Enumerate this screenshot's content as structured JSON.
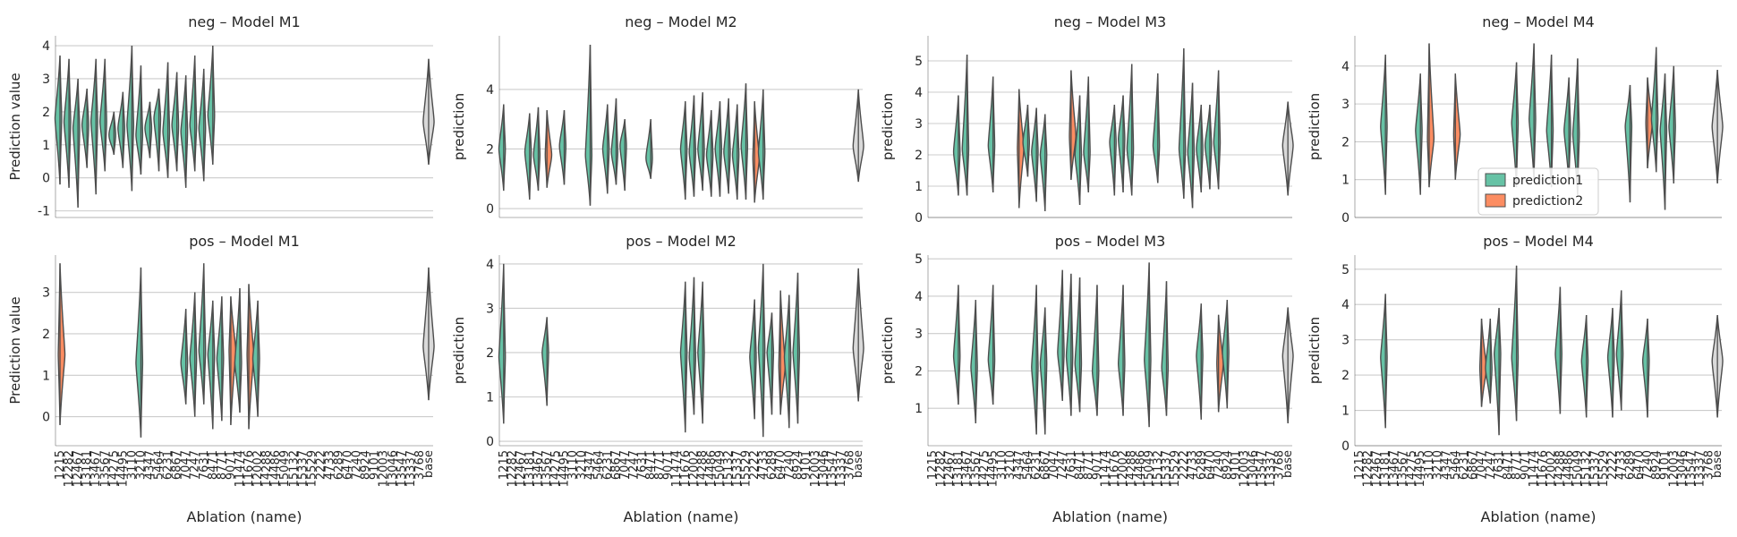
{
  "figure": {
    "xlabel": "Ablation (name)",
    "categories": [
      "1215",
      "12282",
      "12467",
      "13181",
      "13467",
      "13567",
      "14275",
      "14495",
      "3110",
      "3210",
      "4347",
      "5464",
      "6231",
      "6867",
      "7047",
      "7247",
      "7631",
      "8471",
      "8771",
      "9071",
      "11474",
      "11676",
      "12002",
      "14288",
      "14486",
      "15049",
      "15132",
      "15337",
      "15529",
      "2222",
      "4733",
      "6289",
      "6470",
      "7240",
      "8924",
      "9101",
      "12003",
      "13046",
      "13547",
      "13337",
      "3768",
      "base"
    ],
    "colors": {
      "prediction1": "#66c2a5",
      "prediction2": "#fc8d62",
      "base": "#d9d9d9"
    },
    "legend": {
      "entries": [
        "prediction1",
        "prediction2"
      ],
      "placement": "right"
    }
  },
  "chart_data": [
    {
      "type": "violin",
      "title": "neg – Model M1",
      "ylabel": "Prediction value",
      "ylim": [
        -1.2,
        4.3
      ],
      "yticks": [
        -1,
        0,
        1,
        2,
        3,
        4
      ],
      "series": [
        {
          "name": "prediction1"
        },
        {
          "name": "prediction2"
        }
      ],
      "violins": [
        [
          0,
          1.8,
          -0.2,
          3.7,
          1
        ],
        [
          1,
          1.7,
          -0.3,
          3.6,
          1
        ],
        [
          2,
          1.5,
          -0.9,
          3.0,
          1
        ],
        [
          3,
          1.6,
          0.3,
          2.7,
          1
        ],
        [
          4,
          1.7,
          -0.5,
          3.6,
          1
        ],
        [
          5,
          1.7,
          0.2,
          3.6,
          1
        ],
        [
          6,
          1.3,
          0.7,
          2.0,
          1
        ],
        [
          7,
          1.5,
          0.3,
          2.6,
          1
        ],
        [
          8,
          1.6,
          -0.4,
          4.0,
          1
        ],
        [
          9,
          1.3,
          0.1,
          3.4,
          1
        ],
        [
          10,
          1.5,
          0.6,
          2.3,
          1
        ],
        [
          11,
          1.8,
          0.2,
          2.7,
          1
        ],
        [
          12,
          1.4,
          0.0,
          3.5,
          1
        ],
        [
          13,
          1.6,
          0.2,
          3.2,
          1
        ],
        [
          14,
          1.4,
          -0.3,
          3.1,
          1
        ],
        [
          15,
          1.6,
          0.2,
          3.7,
          1
        ],
        [
          16,
          1.5,
          -0.1,
          3.3,
          1
        ],
        [
          17,
          1.9,
          0.4,
          4.0,
          1
        ],
        [
          41,
          1.7,
          0.4,
          3.6,
          3
        ]
      ]
    },
    {
      "type": "violin",
      "title": "neg – Model M2",
      "ylabel": "prediction",
      "ylim": [
        -0.3,
        5.8
      ],
      "yticks": [
        0,
        2,
        4
      ],
      "series": [
        {
          "name": "prediction1"
        },
        {
          "name": "prediction2"
        }
      ],
      "violins": [
        [
          0,
          2.0,
          0.6,
          3.5,
          1
        ],
        [
          3,
          1.9,
          0.3,
          3.2,
          1
        ],
        [
          4,
          1.8,
          0.6,
          3.4,
          1
        ],
        [
          5,
          1.8,
          0.7,
          3.3,
          2
        ],
        [
          7,
          2.1,
          0.8,
          3.3,
          1
        ],
        [
          10,
          1.8,
          0.1,
          5.5,
          1
        ],
        [
          12,
          2.0,
          0.5,
          3.5,
          1
        ],
        [
          13,
          1.9,
          0.8,
          3.7,
          1
        ],
        [
          14,
          2.1,
          0.6,
          3.0,
          1
        ],
        [
          17,
          1.7,
          1.0,
          3.0,
          1
        ],
        [
          21,
          2.0,
          0.3,
          3.6,
          1
        ],
        [
          22,
          1.9,
          0.4,
          3.8,
          1
        ],
        [
          23,
          2.0,
          0.6,
          3.9,
          1
        ],
        [
          24,
          1.8,
          0.4,
          3.3,
          1
        ],
        [
          25,
          2.0,
          0.4,
          3.6,
          1
        ],
        [
          26,
          1.9,
          0.5,
          3.7,
          1
        ],
        [
          27,
          1.8,
          0.3,
          3.5,
          1
        ],
        [
          28,
          2.1,
          0.3,
          4.2,
          1
        ],
        [
          29,
          1.7,
          0.2,
          3.6,
          2
        ],
        [
          30,
          1.9,
          0.3,
          4.0,
          1
        ],
        [
          41,
          2.1,
          0.9,
          4.0,
          3
        ]
      ]
    },
    {
      "type": "violin",
      "title": "neg – Model M3",
      "ylabel": "prediction",
      "ylim": [
        0,
        5.8
      ],
      "yticks": [
        0,
        1,
        2,
        3,
        4,
        5
      ],
      "series": [
        {
          "name": "prediction1"
        },
        {
          "name": "prediction2"
        }
      ],
      "violins": [
        [
          3,
          2.1,
          0.7,
          3.9,
          1
        ],
        [
          4,
          2.2,
          0.7,
          5.2,
          1
        ],
        [
          7,
          2.3,
          0.8,
          4.5,
          1
        ],
        [
          10,
          2.2,
          0.3,
          4.1,
          2
        ],
        [
          11,
          2.4,
          1.3,
          3.6,
          1
        ],
        [
          12,
          2.1,
          0.5,
          3.5,
          1
        ],
        [
          13,
          2.0,
          0.2,
          3.3,
          1
        ],
        [
          16,
          2.6,
          1.2,
          4.7,
          2
        ],
        [
          17,
          2.0,
          0.4,
          3.9,
          1
        ],
        [
          18,
          2.1,
          0.8,
          4.5,
          1
        ],
        [
          21,
          2.4,
          0.7,
          3.6,
          1
        ],
        [
          22,
          2.5,
          0.8,
          3.9,
          1
        ],
        [
          23,
          2.2,
          0.7,
          4.9,
          1
        ],
        [
          26,
          2.3,
          1.1,
          4.6,
          1
        ],
        [
          29,
          2.2,
          0.6,
          5.4,
          1
        ],
        [
          30,
          2.1,
          0.3,
          4.3,
          1
        ],
        [
          31,
          2.2,
          0.8,
          3.6,
          1
        ],
        [
          32,
          2.3,
          0.9,
          3.6,
          1
        ],
        [
          33,
          2.4,
          0.9,
          4.7,
          1
        ],
        [
          41,
          2.3,
          0.7,
          3.7,
          3
        ]
      ]
    },
    {
      "type": "violin",
      "title": "neg – Model M4",
      "ylabel": "prediction",
      "ylim": [
        0,
        4.8
      ],
      "yticks": [
        0,
        1,
        2,
        3,
        4
      ],
      "series": [
        {
          "name": "prediction1"
        },
        {
          "name": "prediction2"
        }
      ],
      "violins": [
        [
          3,
          2.4,
          0.6,
          4.3,
          1
        ],
        [
          7,
          2.3,
          0.6,
          3.8,
          1
        ],
        [
          8,
          2.1,
          0.8,
          4.6,
          2
        ],
        [
          11,
          2.2,
          1.0,
          3.8,
          2
        ],
        [
          18,
          2.5,
          0.8,
          4.1,
          1
        ],
        [
          20,
          2.6,
          1.0,
          4.6,
          1
        ],
        [
          22,
          2.3,
          0.8,
          4.3,
          1
        ],
        [
          24,
          2.3,
          0.9,
          3.7,
          1
        ],
        [
          25,
          2.2,
          0.6,
          4.2,
          1
        ],
        [
          31,
          2.4,
          0.4,
          3.5,
          1
        ],
        [
          33,
          2.5,
          1.3,
          3.7,
          2
        ],
        [
          34,
          2.6,
          1.2,
          4.5,
          1
        ],
        [
          35,
          2.3,
          0.2,
          3.8,
          1
        ],
        [
          36,
          2.4,
          0.9,
          4.0,
          1
        ],
        [
          41,
          2.4,
          0.9,
          3.9,
          3
        ]
      ]
    },
    {
      "type": "violin",
      "title": "pos – Model M1",
      "ylabel": "Prediction value",
      "ylim": [
        -0.7,
        3.9
      ],
      "yticks": [
        0,
        1,
        2,
        3
      ],
      "series": [
        {
          "name": "prediction1"
        },
        {
          "name": "prediction2"
        }
      ],
      "violins": [
        [
          0,
          1.5,
          -0.2,
          3.7,
          2
        ],
        [
          9,
          1.3,
          -0.5,
          3.6,
          1
        ],
        [
          14,
          1.3,
          0.3,
          2.6,
          1
        ],
        [
          15,
          1.4,
          0.0,
          3.0,
          1
        ],
        [
          16,
          1.6,
          0.3,
          3.7,
          1
        ],
        [
          17,
          1.5,
          -0.3,
          2.8,
          1
        ],
        [
          18,
          1.4,
          -0.1,
          2.9,
          1
        ],
        [
          19,
          1.6,
          -0.2,
          2.9,
          2
        ],
        [
          20,
          1.3,
          0.1,
          3.1,
          1
        ],
        [
          21,
          1.5,
          -0.3,
          3.2,
          2
        ],
        [
          22,
          1.4,
          0.0,
          2.8,
          1
        ],
        [
          41,
          1.7,
          0.4,
          3.6,
          3
        ]
      ]
    },
    {
      "type": "violin",
      "title": "pos – Model M2",
      "ylabel": "prediction",
      "ylim": [
        -0.1,
        4.2
      ],
      "yticks": [
        0,
        1,
        2,
        3,
        4
      ],
      "series": [
        {
          "name": "prediction1"
        },
        {
          "name": "prediction2"
        }
      ],
      "violins": [
        [
          0,
          1.9,
          0.4,
          4.0,
          1
        ],
        [
          5,
          2.0,
          0.8,
          2.8,
          1
        ],
        [
          21,
          2.0,
          0.2,
          3.6,
          1
        ],
        [
          22,
          1.9,
          0.6,
          3.7,
          1
        ],
        [
          23,
          2.0,
          0.4,
          3.6,
          1
        ],
        [
          29,
          1.9,
          0.5,
          3.2,
          1
        ],
        [
          30,
          2.1,
          0.1,
          4.0,
          1
        ],
        [
          31,
          2.0,
          0.6,
          2.9,
          1
        ],
        [
          32,
          1.7,
          0.6,
          3.4,
          2
        ],
        [
          33,
          1.9,
          0.3,
          3.3,
          1
        ],
        [
          34,
          2.0,
          0.4,
          3.8,
          1
        ],
        [
          41,
          2.1,
          0.9,
          3.9,
          3
        ]
      ]
    },
    {
      "type": "violin",
      "title": "pos – Model M3",
      "ylabel": "prediction",
      "ylim": [
        0,
        5.1
      ],
      "yticks": [
        1,
        2,
        3,
        4,
        5
      ],
      "series": [
        {
          "name": "prediction1"
        },
        {
          "name": "prediction2"
        }
      ],
      "violins": [
        [
          3,
          2.4,
          1.1,
          4.3,
          1
        ],
        [
          5,
          2.1,
          0.6,
          3.9,
          1
        ],
        [
          7,
          2.3,
          1.1,
          4.3,
          1
        ],
        [
          12,
          2.1,
          0.3,
          4.3,
          1
        ],
        [
          13,
          2.2,
          0.3,
          3.7,
          1
        ],
        [
          15,
          2.5,
          1.2,
          4.7,
          1
        ],
        [
          16,
          2.4,
          0.8,
          4.6,
          1
        ],
        [
          17,
          2.2,
          0.9,
          4.5,
          1
        ],
        [
          19,
          2.0,
          0.8,
          4.3,
          1
        ],
        [
          22,
          2.2,
          0.8,
          4.3,
          1
        ],
        [
          25,
          2.3,
          0.5,
          4.9,
          1
        ],
        [
          27,
          2.1,
          0.8,
          4.4,
          1
        ],
        [
          31,
          2.4,
          0.7,
          3.8,
          1
        ],
        [
          33,
          2.2,
          0.9,
          3.5,
          2
        ],
        [
          34,
          2.5,
          1.0,
          3.9,
          1
        ],
        [
          41,
          2.4,
          0.6,
          3.7,
          3
        ]
      ]
    },
    {
      "type": "violin",
      "title": "pos – Model M4",
      "ylabel": "prediction",
      "ylim": [
        0,
        5.4
      ],
      "yticks": [
        0,
        1,
        2,
        3,
        4,
        5
      ],
      "series": [
        {
          "name": "prediction1"
        },
        {
          "name": "prediction2"
        }
      ],
      "violins": [
        [
          3,
          2.5,
          0.5,
          4.3,
          1
        ],
        [
          14,
          2.2,
          1.1,
          3.6,
          2
        ],
        [
          15,
          2.2,
          1.2,
          3.6,
          1
        ],
        [
          16,
          2.6,
          0.3,
          3.9,
          1
        ],
        [
          18,
          2.5,
          0.7,
          5.1,
          1
        ],
        [
          23,
          2.6,
          0.9,
          4.5,
          1
        ],
        [
          26,
          2.4,
          0.8,
          3.7,
          1
        ],
        [
          29,
          2.5,
          0.8,
          3.9,
          1
        ],
        [
          30,
          2.6,
          1.0,
          4.4,
          1
        ],
        [
          33,
          2.4,
          0.8,
          3.6,
          1
        ],
        [
          41,
          2.4,
          0.8,
          3.7,
          3
        ]
      ]
    }
  ]
}
